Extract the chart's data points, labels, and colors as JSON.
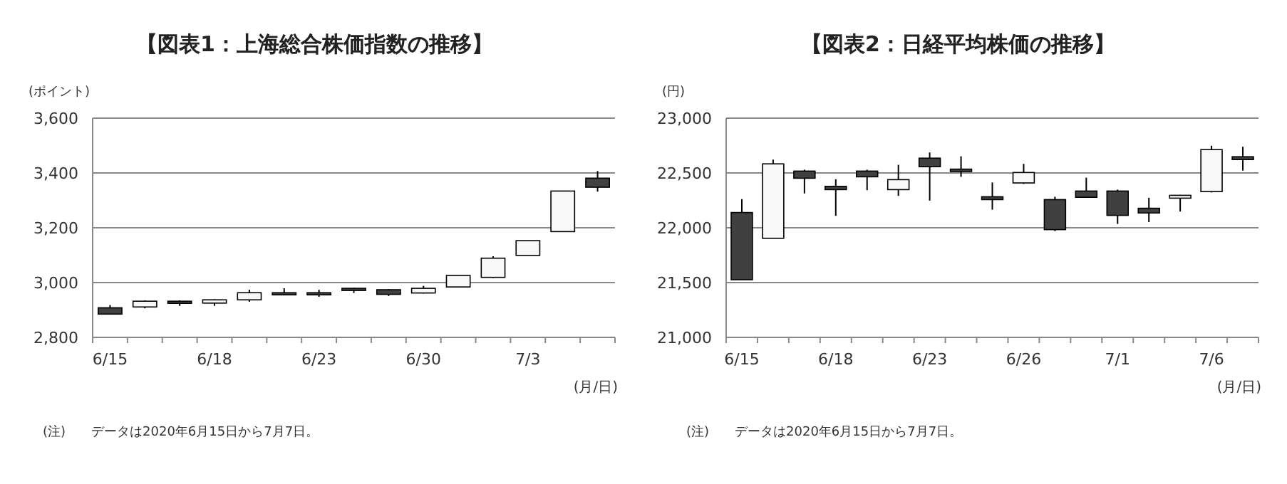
{
  "chart_data": [
    {
      "type": "candlestick",
      "title": "【図表1：上海総合株価指数の推移】",
      "ylabel": "(ポイント)",
      "xlabel": "(月/日)",
      "categories": [
        "6/15",
        null,
        null,
        "6/18",
        null,
        null,
        "6/23",
        null,
        null,
        "6/30",
        null,
        null,
        "7/3",
        null,
        null
      ],
      "ohlc": [
        [
          2908,
          2918,
          2883,
          2885
        ],
        [
          2911,
          2935,
          2906,
          2932
        ],
        [
          2932,
          2935,
          2915,
          2925
        ],
        [
          2925,
          2939,
          2915,
          2937
        ],
        [
          2937,
          2974,
          2930,
          2963
        ],
        [
          2963,
          2979,
          2955,
          2957
        ],
        [
          2963,
          2974,
          2948,
          2957
        ],
        [
          2979,
          2981,
          2962,
          2972
        ],
        [
          2974,
          2976,
          2951,
          2957
        ],
        [
          2962,
          2988,
          2960,
          2979
        ],
        [
          2984,
          3026,
          2984,
          3026
        ],
        [
          3019,
          3096,
          3017,
          3089
        ],
        [
          3099,
          3153,
          3099,
          3153
        ],
        [
          3186,
          3334,
          3186,
          3334
        ],
        [
          3381,
          3407,
          3332,
          3348
        ]
      ],
      "colors": [
        "#404040",
        "#f8f8f8",
        "#404040",
        "#f8f8f8",
        "#f8f8f8",
        "#404040",
        "#404040",
        "#404040",
        "#404040",
        "#f8f8f8",
        "#f8f8f8",
        "#f8f8f8",
        "#f8f8f8",
        "#f8f8f8",
        "#404040"
      ],
      "ylim": [
        2800,
        3600
      ],
      "yticks": [
        {
          "value": 2800,
          "label": "2,800"
        },
        {
          "value": 3000,
          "label": "3,000"
        },
        {
          "value": 3200,
          "label": "3,200"
        },
        {
          "value": 3400,
          "label": "3,400"
        },
        {
          "value": 3600,
          "label": "3,600"
        }
      ],
      "grid": "y",
      "annotations": [
        "(注)　　データは2020年6月15日から7月7日。"
      ]
    },
    {
      "type": "candlestick",
      "title": "【図表2：日経平均株価の推移】",
      "ylabel": "(円)",
      "xlabel": "(月/日)",
      "categories": [
        "6/15",
        null,
        null,
        "6/18",
        null,
        null,
        "6/23",
        null,
        null,
        "6/26",
        null,
        null,
        "7/1",
        null,
        null,
        "7/6",
        null
      ],
      "ohlc": [
        [
          22139,
          22261,
          21526,
          21526
        ],
        [
          21904,
          22622,
          21904,
          22583
        ],
        [
          22517,
          22530,
          22313,
          22452
        ],
        [
          22378,
          22443,
          22109,
          22348
        ],
        [
          22517,
          22530,
          22343,
          22465
        ],
        [
          22348,
          22574,
          22291,
          22439
        ],
        [
          22635,
          22687,
          22248,
          22557
        ],
        [
          22535,
          22652,
          22465,
          22513
        ],
        [
          22283,
          22413,
          22165,
          22257
        ],
        [
          22409,
          22583,
          22400,
          22504
        ],
        [
          22257,
          22283,
          21970,
          21983
        ],
        [
          22335,
          22457,
          22274,
          22278
        ],
        [
          22335,
          22348,
          22035,
          22113
        ],
        [
          22178,
          22274,
          22052,
          22135
        ],
        [
          22270,
          22300,
          22148,
          22296
        ],
        [
          22330,
          22748,
          22322,
          22713
        ],
        [
          22648,
          22739,
          22522,
          22622
        ]
      ],
      "colors": [
        "#404040",
        "#f8f8f8",
        "#404040",
        "#404040",
        "#404040",
        "#f8f8f8",
        "#404040",
        "#404040",
        "#404040",
        "#f8f8f8",
        "#404040",
        "#404040",
        "#404040",
        "#404040",
        "#f8f8f8",
        "#f8f8f8",
        "#404040"
      ],
      "ylim": [
        21000,
        23000
      ],
      "yticks": [
        {
          "value": 21000,
          "label": "21,000"
        },
        {
          "value": 21500,
          "label": "21,500"
        },
        {
          "value": 22000,
          "label": "22,000"
        },
        {
          "value": 22500,
          "label": "22,500"
        },
        {
          "value": 23000,
          "label": "23,000"
        }
      ],
      "grid": "y",
      "annotations": [
        "(注)　　データは2020年6月15日から7月7日。"
      ]
    }
  ]
}
